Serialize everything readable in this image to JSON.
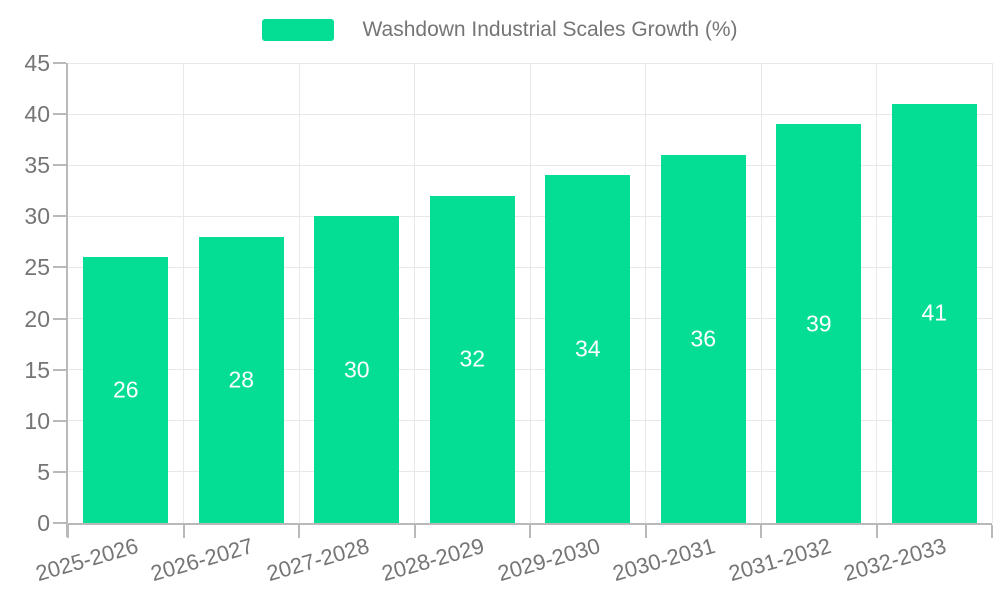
{
  "legend": {
    "label": "Washdown Industrial Scales Growth (%)"
  },
  "chart_data": {
    "type": "bar",
    "title": "Washdown Industrial Scales Growth (%)",
    "categories": [
      "2025-2026",
      "2026-2027",
      "2027-2028",
      "2028-2029",
      "2029-2030",
      "2030-2031",
      "2031-2032",
      "2032-2033"
    ],
    "values": [
      26,
      28,
      30,
      32,
      34,
      36,
      39,
      41
    ],
    "xlabel": "",
    "ylabel": "",
    "ylim": [
      0,
      45
    ],
    "yticks": [
      0,
      5,
      10,
      15,
      20,
      25,
      30,
      35,
      40,
      45
    ],
    "grid": true,
    "legend_position": "top-center",
    "bar_color": "#04DE94",
    "value_label_color": "#ffffff",
    "grid_color": "#E8E8E8",
    "axis_color": "#B9B9B9",
    "text_color": "#757575"
  }
}
